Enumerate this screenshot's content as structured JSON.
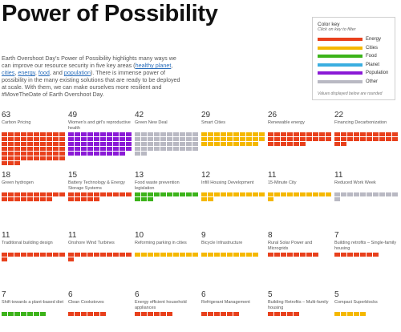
{
  "page": {
    "title": "Power of Possibility",
    "intro": {
      "before": "Earth Overshoot Day's Power of Possibility highlights many ways we can improve our resource security in five key areas (",
      "links": [
        "healthy planet",
        "cities",
        "energy",
        "food",
        "population"
      ],
      "after": "). There is immense power of possibility in the many existing solutions that are ready to be deployed at scale. With them, we can make ourselves more resilient and #MoveTheDate of Earth Overshoot Day."
    }
  },
  "legend": {
    "title": "Color key",
    "subtitle": "Click on key to filter",
    "items": [
      {
        "label": "Energy",
        "color": "#e8401c"
      },
      {
        "label": "Cities",
        "color": "#f5b800"
      },
      {
        "label": "Food",
        "color": "#3cb31a"
      },
      {
        "label": "Planet",
        "color": "#3aaee0"
      },
      {
        "label": "Population",
        "color": "#8a1ad6"
      },
      {
        "label": "Other",
        "color": "#b9b9c3"
      }
    ],
    "footnote": "Values displayed below are rounded"
  },
  "tiles": [
    {
      "value": "63",
      "label": "Carbon Pricing",
      "category": "Energy",
      "blocks": 63
    },
    {
      "value": "49",
      "label": "Women's and girl's reproductive health",
      "category": "Population",
      "blocks": 49
    },
    {
      "value": "42",
      "label": "Green New Deal",
      "category": "Other",
      "blocks": 42
    },
    {
      "value": "29",
      "label": "Smart Cities",
      "category": "Cities",
      "blocks": 29
    },
    {
      "value": "26",
      "label": "Renewable energy",
      "category": "Energy",
      "blocks": 26
    },
    {
      "value": "22",
      "label": "Financing Decarbonization",
      "category": "Energy",
      "blocks": 22
    },
    {
      "value": "18",
      "label": "Green hydrogen",
      "category": "Energy",
      "blocks": 18
    },
    {
      "value": "15",
      "label": "Battery Technology & Energy Storage Systems",
      "category": "Energy",
      "blocks": 15
    },
    {
      "value": "13",
      "label": "Food waste prevention legislation",
      "category": "Food",
      "blocks": 13
    },
    {
      "value": "12",
      "label": "Infill Housing Development",
      "category": "Cities",
      "blocks": 12
    },
    {
      "value": "11",
      "label": "15-Minute City",
      "category": "Cities",
      "blocks": 11
    },
    {
      "value": "11",
      "label": "Reduced Work Week",
      "category": "Other",
      "blocks": 11
    },
    {
      "value": "11",
      "label": "Traditional building design",
      "category": "Energy",
      "blocks": 11
    },
    {
      "value": "11",
      "label": "Onshore Wind Turbines",
      "category": "Energy",
      "blocks": 11
    },
    {
      "value": "10",
      "label": "Reforming parking in cities",
      "category": "Cities",
      "blocks": 10
    },
    {
      "value": "9",
      "label": "Bicycle Infrastructure",
      "category": "Cities",
      "blocks": 9
    },
    {
      "value": "8",
      "label": "Rural Solar Power and Microgrids",
      "category": "Energy",
      "blocks": 8
    },
    {
      "value": "7",
      "label": "Building retrofits – Single-family housing",
      "category": "Energy",
      "blocks": 7
    },
    {
      "value": "7",
      "label": "Shift towards a plant-based diet",
      "category": "Food",
      "blocks": 7
    },
    {
      "value": "6",
      "label": "Clean Cookstoves",
      "category": "Energy",
      "blocks": 6
    },
    {
      "value": "6",
      "label": "Energy efficient household appliances",
      "category": "Energy",
      "blocks": 6
    },
    {
      "value": "6",
      "label": "Refrigerant Management",
      "category": "Energy",
      "blocks": 6
    },
    {
      "value": "5",
      "label": "Building Retrofits – Multi-family housing",
      "category": "Energy",
      "blocks": 5
    },
    {
      "value": "5",
      "label": "Compact Superblocks",
      "category": "Cities",
      "blocks": 5
    }
  ]
}
